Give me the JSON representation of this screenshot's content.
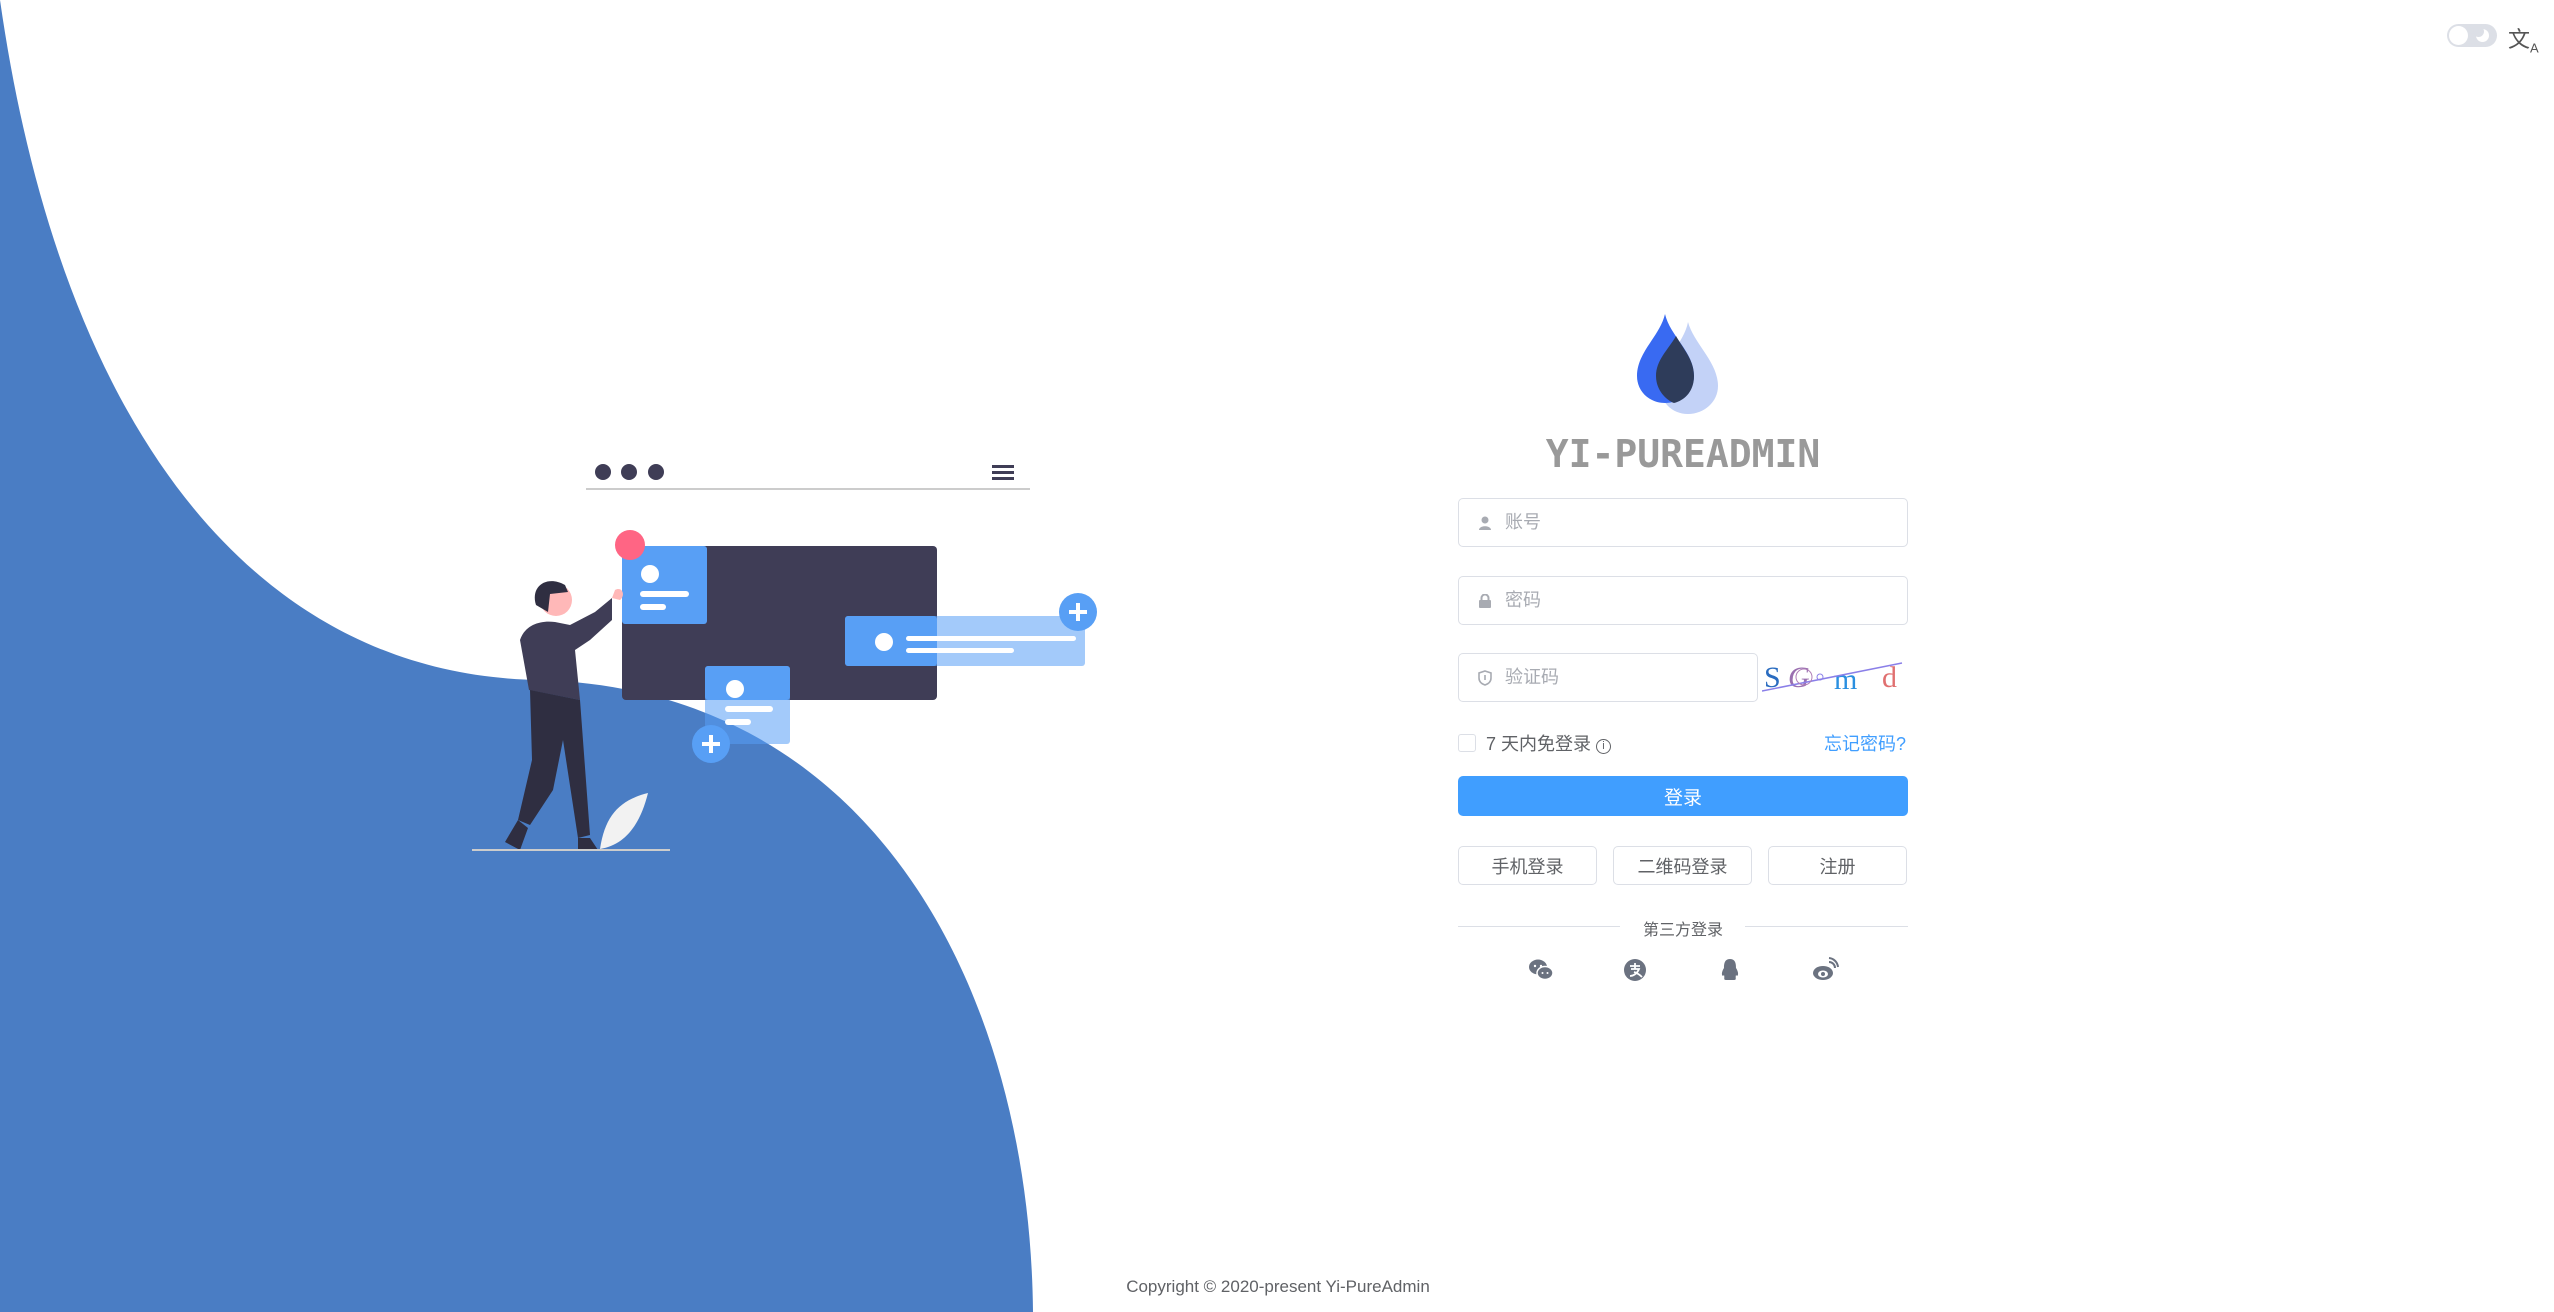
{
  "header": {
    "theme_toggle_icon": "moon-icon",
    "translate_icon": "translate-icon"
  },
  "brand": {
    "title": "YI-PUREADMIN",
    "logo": "drop-logo"
  },
  "form": {
    "username_placeholder": "账号",
    "password_placeholder": "密码",
    "captcha_placeholder": "验证码",
    "captcha_text": [
      "S",
      "G",
      "m",
      "d"
    ],
    "remember_label": "7 天内免登录",
    "forgot_label": "忘记密码?",
    "login_label": "登录",
    "alt_buttons": [
      "手机登录",
      "二维码登录",
      "注册"
    ],
    "third_party_label": "第三方登录",
    "social_icons": [
      "wechat-icon",
      "alipay-icon",
      "qq-icon",
      "weibo-icon"
    ]
  },
  "footer": {
    "copyright": "Copyright © 2020-present Yi-PureAdmin"
  },
  "colors": {
    "primary": "#409eff",
    "wave": "#4a7dc4",
    "illustration_dark": "#3f3d56",
    "card_blue": "#589ff5",
    "accent_red": "#ff6584"
  }
}
